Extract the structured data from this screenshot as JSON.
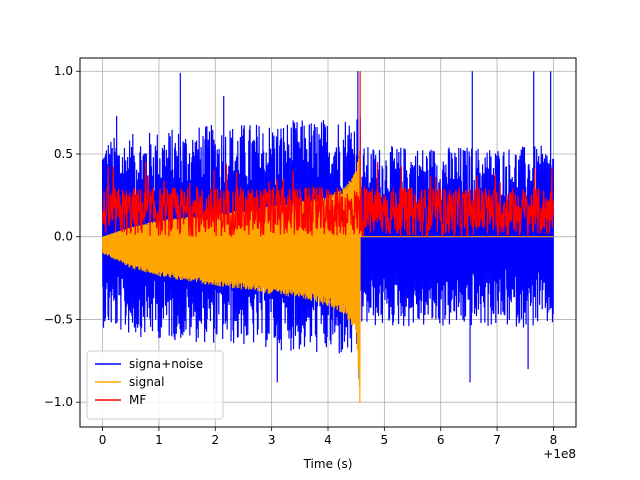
{
  "chart_data": {
    "type": "line",
    "title": "",
    "xlabel": "Time (s)",
    "ylabel": "",
    "x_offset_text": "+1e8",
    "xlim": [
      -0.4,
      8.4
    ],
    "ylim": [
      -1.15,
      1.08
    ],
    "xticks": [
      0,
      1,
      2,
      3,
      4,
      5,
      6,
      7,
      8
    ],
    "xtick_labels": [
      "0",
      "1",
      "2",
      "3",
      "4",
      "5",
      "6",
      "7",
      "8"
    ],
    "yticks": [
      -1.0,
      -0.5,
      0.0,
      0.5,
      1.0
    ],
    "ytick_labels": [
      "−1.0",
      "−0.5",
      "0.0",
      "0.5",
      "1.0"
    ],
    "grid": true,
    "legend_position": "lower-left",
    "series": [
      {
        "name": "signa+noise",
        "color": "#0000ff",
        "x_range": [
          0,
          8
        ],
        "envelope": {
          "t": [
            0,
            0.5,
            1,
            2,
            3,
            4,
            4.4,
            4.57,
            4.58,
            6,
            8
          ],
          "upper": [
            0.6,
            0.62,
            0.65,
            0.68,
            0.7,
            0.72,
            0.75,
            0.8,
            0.55,
            0.55,
            0.55
          ],
          "lower": [
            -0.55,
            -0.6,
            -0.62,
            -0.65,
            -0.68,
            -0.72,
            -0.75,
            -0.8,
            -0.55,
            -0.55,
            -0.55
          ]
        },
        "peaks": [
          [
            0.25,
            0.73
          ],
          [
            1.38,
            0.99
          ],
          [
            2.15,
            0.85
          ],
          [
            4.53,
            1.0
          ],
          [
            6.56,
            1.0
          ],
          [
            7.65,
            1.0
          ],
          [
            7.95,
            1.0
          ],
          [
            3.1,
            -0.88
          ],
          [
            4.55,
            -0.86
          ],
          [
            6.52,
            -0.88
          ],
          [
            7.55,
            -0.8
          ]
        ]
      },
      {
        "name": "signal",
        "color": "#ffa500",
        "x_range": [
          0,
          8
        ],
        "chirp_end": 4.57,
        "envelope": {
          "t": [
            0,
            0.5,
            1,
            1.5,
            2,
            2.5,
            3,
            3.5,
            4,
            4.3,
            4.5,
            4.57
          ],
          "upper": [
            0.0,
            0.06,
            0.1,
            0.12,
            0.14,
            0.16,
            0.19,
            0.21,
            0.25,
            0.3,
            0.4,
            0.55
          ],
          "lower": [
            -0.1,
            -0.19,
            -0.24,
            -0.27,
            -0.3,
            -0.32,
            -0.35,
            -0.37,
            -0.42,
            -0.47,
            -0.6,
            -1.06
          ]
        }
      },
      {
        "name": "MF",
        "color": "#ff0000",
        "x_range": [
          0,
          8
        ],
        "peak_t": 4.57,
        "peak_value": 1.0,
        "baseline": 0.12,
        "band": [
          0.0,
          0.3
        ]
      }
    ]
  }
}
